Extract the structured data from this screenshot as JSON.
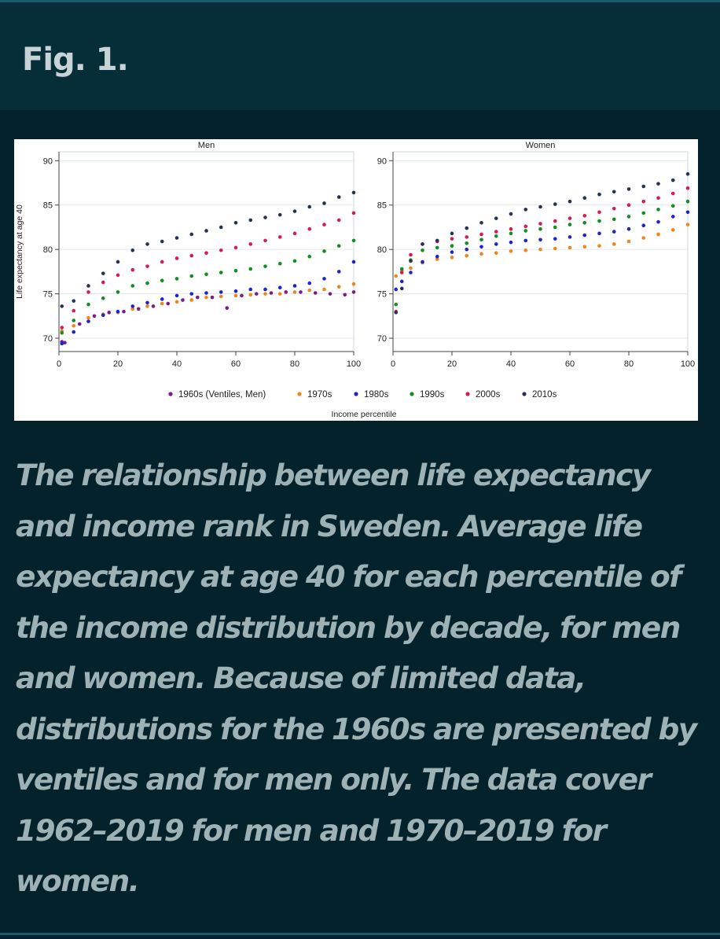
{
  "figure": {
    "label": "Fig. 1.",
    "caption": "The relationship between life expectancy and income rank in Sweden. Average life expectancy at age 40 for each percentile of the income distribution by decade, for men and women. Because of limited data, distributions for the 1960s are presented by ventiles and for men only. The data cover 1962–2019 for men and 1970–2019 for women."
  },
  "chart_data": [
    {
      "type": "scatter",
      "title": "Men",
      "xlabel": "Income percentile",
      "ylabel": "Life expectancy at age 40",
      "xlim": [
        0,
        100
      ],
      "ylim": [
        68.5,
        91
      ],
      "xticks": [
        0,
        20,
        40,
        60,
        80,
        100
      ],
      "yticks": [
        70,
        75,
        80,
        85,
        90
      ],
      "grid": true,
      "legend_position": "bottom",
      "series": [
        {
          "name": "1960s (Ventiles, Men)",
          "color": "#7a1a8c",
          "x": [
            1,
            2,
            7,
            12,
            17,
            22,
            27,
            32,
            37,
            42,
            47,
            52,
            57,
            62,
            67,
            72,
            77,
            82,
            87,
            92,
            97,
            100
          ],
          "y": [
            69.6,
            69.5,
            71.6,
            72.5,
            72.9,
            73.0,
            73.3,
            73.6,
            73.9,
            74.3,
            74.6,
            74.6,
            73.4,
            74.8,
            75.0,
            75.1,
            75.2,
            75.2,
            75.1,
            75.0,
            74.9,
            75.2
          ]
        },
        {
          "name": "1970s",
          "color": "#f0861a",
          "x": [
            1,
            5,
            10,
            15,
            20,
            25,
            30,
            35,
            40,
            45,
            50,
            55,
            60,
            65,
            70,
            75,
            80,
            85,
            90,
            95,
            100
          ],
          "y": [
            70.8,
            71.4,
            72.3,
            72.7,
            72.9,
            73.3,
            73.6,
            73.9,
            74.1,
            74.3,
            74.6,
            74.7,
            74.8,
            74.9,
            75.0,
            75.0,
            75.2,
            75.4,
            75.5,
            75.8,
            76.1
          ]
        },
        {
          "name": "1980s",
          "color": "#1f22d4",
          "x": [
            1,
            5,
            10,
            15,
            20,
            25,
            30,
            35,
            40,
            45,
            50,
            55,
            60,
            65,
            70,
            75,
            80,
            85,
            90,
            95,
            100
          ],
          "y": [
            69.4,
            70.7,
            71.9,
            72.6,
            73.0,
            73.6,
            74.0,
            74.4,
            74.8,
            75.0,
            75.1,
            75.2,
            75.3,
            75.5,
            75.5,
            75.7,
            75.9,
            76.2,
            76.7,
            77.5,
            78.6
          ]
        },
        {
          "name": "1990s",
          "color": "#0f8f1f",
          "x": [
            1,
            5,
            10,
            15,
            20,
            25,
            30,
            35,
            40,
            45,
            50,
            55,
            60,
            65,
            70,
            75,
            80,
            85,
            90,
            95,
            100
          ],
          "y": [
            70.6,
            72.0,
            73.8,
            74.5,
            75.2,
            75.9,
            76.2,
            76.5,
            76.7,
            77.0,
            77.2,
            77.4,
            77.6,
            77.8,
            78.1,
            78.4,
            78.7,
            79.2,
            79.8,
            80.4,
            81.0
          ]
        },
        {
          "name": "2000s",
          "color": "#d91a4f",
          "x": [
            1,
            5,
            10,
            15,
            20,
            25,
            30,
            35,
            40,
            45,
            50,
            55,
            60,
            65,
            70,
            75,
            80,
            85,
            90,
            95,
            100
          ],
          "y": [
            71.2,
            73.1,
            75.2,
            76.3,
            77.1,
            77.7,
            78.1,
            78.6,
            79.0,
            79.3,
            79.6,
            79.9,
            80.2,
            80.6,
            81.0,
            81.4,
            81.8,
            82.3,
            82.8,
            83.3,
            84.1
          ]
        },
        {
          "name": "2010s",
          "color": "#243355",
          "x": [
            1,
            5,
            10,
            15,
            20,
            25,
            30,
            35,
            40,
            45,
            50,
            55,
            60,
            65,
            70,
            75,
            80,
            85,
            90,
            95,
            100
          ],
          "y": [
            73.6,
            74.2,
            75.9,
            77.3,
            78.6,
            79.9,
            80.6,
            80.9,
            81.3,
            81.7,
            82.1,
            82.5,
            83.0,
            83.3,
            83.6,
            83.9,
            84.3,
            84.8,
            85.2,
            85.9,
            86.4
          ]
        }
      ]
    },
    {
      "type": "scatter",
      "title": "Women",
      "xlabel": "Income percentile",
      "ylabel": "Life expectancy at age 40",
      "xlim": [
        0,
        100
      ],
      "ylim": [
        68.5,
        91
      ],
      "xticks": [
        0,
        20,
        40,
        60,
        80,
        100
      ],
      "yticks": [
        70,
        75,
        80,
        85,
        90
      ],
      "grid": true,
      "legend_position": "bottom",
      "series": [
        {
          "name": "1970s",
          "color": "#f0861a",
          "x": [
            1,
            3,
            6,
            10,
            15,
            20,
            25,
            30,
            35,
            40,
            45,
            50,
            55,
            60,
            65,
            70,
            75,
            80,
            85,
            90,
            95,
            100
          ],
          "y": [
            77.0,
            77.6,
            77.9,
            78.5,
            78.9,
            79.1,
            79.3,
            79.5,
            79.6,
            79.8,
            79.9,
            80.0,
            80.1,
            80.2,
            80.3,
            80.4,
            80.6,
            80.9,
            81.3,
            81.7,
            82.2,
            82.8
          ]
        },
        {
          "name": "1980s",
          "color": "#1f22d4",
          "x": [
            1,
            3,
            6,
            10,
            15,
            20,
            25,
            30,
            35,
            40,
            45,
            50,
            55,
            60,
            65,
            70,
            75,
            80,
            85,
            90,
            95,
            100
          ],
          "y": [
            75.5,
            76.4,
            77.4,
            78.6,
            79.2,
            79.7,
            80.0,
            80.3,
            80.6,
            80.8,
            81.0,
            81.1,
            81.2,
            81.4,
            81.6,
            81.8,
            82.0,
            82.3,
            82.7,
            83.1,
            83.7,
            84.2
          ]
        },
        {
          "name": "1990s",
          "color": "#0f8f1f",
          "x": [
            1,
            3,
            6,
            10,
            15,
            20,
            25,
            30,
            35,
            40,
            45,
            50,
            55,
            60,
            65,
            70,
            75,
            80,
            85,
            90,
            95,
            100
          ],
          "y": [
            73.8,
            77.8,
            78.8,
            79.9,
            80.2,
            80.4,
            80.7,
            81.1,
            81.5,
            81.8,
            82.1,
            82.3,
            82.5,
            82.8,
            83.0,
            83.2,
            83.4,
            83.7,
            84.1,
            84.5,
            84.9,
            85.4
          ]
        },
        {
          "name": "2000s",
          "color": "#d91a4f",
          "x": [
            1,
            3,
            6,
            10,
            15,
            20,
            25,
            30,
            35,
            40,
            45,
            50,
            55,
            60,
            65,
            70,
            75,
            80,
            85,
            90,
            95,
            100
          ],
          "y": [
            73.0,
            77.4,
            79.4,
            80.6,
            80.9,
            81.2,
            81.4,
            81.7,
            82.0,
            82.3,
            82.6,
            82.9,
            83.2,
            83.5,
            83.8,
            84.2,
            84.6,
            85.0,
            85.4,
            85.8,
            86.3,
            86.9
          ]
        },
        {
          "name": "2010s",
          "color": "#243355",
          "x": [
            1,
            3,
            6,
            10,
            15,
            20,
            25,
            30,
            35,
            40,
            45,
            50,
            55,
            60,
            65,
            70,
            75,
            80,
            85,
            90,
            95,
            100
          ],
          "y": [
            72.9,
            75.6,
            78.7,
            80.6,
            81.0,
            81.8,
            82.4,
            83.0,
            83.5,
            84.0,
            84.5,
            84.8,
            85.1,
            85.4,
            85.8,
            86.2,
            86.5,
            86.8,
            87.1,
            87.4,
            87.8,
            88.5
          ]
        }
      ]
    }
  ],
  "legend": [
    {
      "label": "1960s (Ventiles, Men)",
      "color": "#7a1a8c"
    },
    {
      "label": "1970s",
      "color": "#f0861a"
    },
    {
      "label": "1980s",
      "color": "#1f22d4"
    },
    {
      "label": "1990s",
      "color": "#0f8f1f"
    },
    {
      "label": "2000s",
      "color": "#d91a4f"
    },
    {
      "label": "2010s",
      "color": "#243355"
    }
  ]
}
